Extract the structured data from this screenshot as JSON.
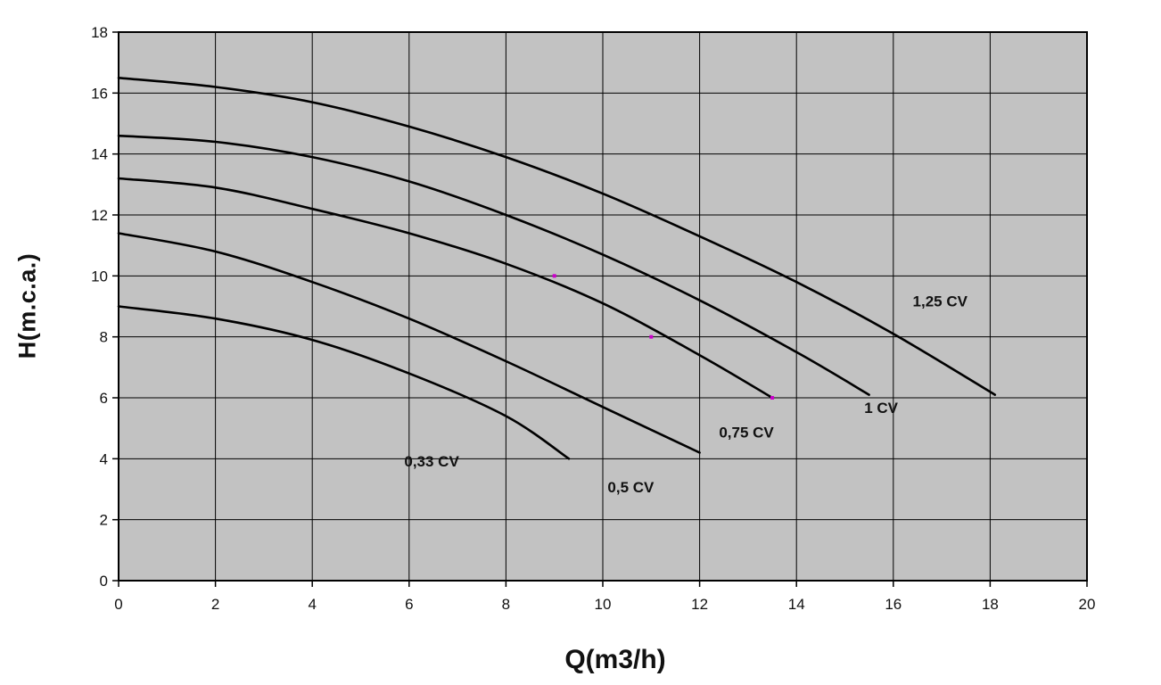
{
  "page": {
    "background": "#ffffff"
  },
  "chart_data": {
    "type": "line",
    "title": "",
    "xlabel": "Q(m3/h)",
    "ylabel": "H(m.c.a.)",
    "xlim": [
      0,
      20
    ],
    "ylim": [
      0,
      18
    ],
    "x_ticks": [
      0,
      2,
      4,
      6,
      8,
      10,
      12,
      14,
      16,
      18,
      20
    ],
    "y_ticks": [
      0,
      2,
      4,
      6,
      8,
      10,
      12,
      14,
      16,
      18
    ],
    "grid": true,
    "legend_position": "none",
    "plot_background": "#c2c2c2",
    "grid_color": "#000000",
    "border_color": "#000000",
    "curve_color": "#000000",
    "marker_color": "#cc00cc",
    "series": [
      {
        "name": "0,33 CV",
        "points": [
          [
            0,
            9.0
          ],
          [
            2,
            8.6
          ],
          [
            4,
            7.9
          ],
          [
            6,
            6.8
          ],
          [
            8,
            5.4
          ],
          [
            9.3,
            4.0
          ]
        ],
        "label_pos": [
          5.9,
          3.75
        ]
      },
      {
        "name": "0,5 CV",
        "points": [
          [
            0,
            11.4
          ],
          [
            2,
            10.8
          ],
          [
            4,
            9.8
          ],
          [
            6,
            8.6
          ],
          [
            8,
            7.2
          ],
          [
            10,
            5.7
          ],
          [
            12,
            4.2
          ]
        ],
        "label_pos": [
          10.1,
          2.9
        ]
      },
      {
        "name": "0,75 CV",
        "points": [
          [
            0,
            13.2
          ],
          [
            2,
            12.9
          ],
          [
            4,
            12.2
          ],
          [
            6,
            11.4
          ],
          [
            8,
            10.4
          ],
          [
            10,
            9.1
          ],
          [
            12,
            7.4
          ],
          [
            13.5,
            6.0
          ]
        ],
        "label_pos": [
          12.4,
          4.7
        ]
      },
      {
        "name": "1 CV",
        "points": [
          [
            0,
            14.6
          ],
          [
            2,
            14.4
          ],
          [
            4,
            13.9
          ],
          [
            6,
            13.1
          ],
          [
            8,
            12.0
          ],
          [
            10,
            10.7
          ],
          [
            12,
            9.2
          ],
          [
            14,
            7.5
          ],
          [
            15.5,
            6.1
          ]
        ],
        "label_pos": [
          15.4,
          5.5
        ]
      },
      {
        "name": "1,25 CV",
        "points": [
          [
            0,
            16.5
          ],
          [
            2,
            16.2
          ],
          [
            4,
            15.7
          ],
          [
            6,
            14.9
          ],
          [
            8,
            13.9
          ],
          [
            10,
            12.7
          ],
          [
            12,
            11.3
          ],
          [
            14,
            9.8
          ],
          [
            16,
            8.1
          ],
          [
            18.1,
            6.1
          ]
        ],
        "label_pos": [
          16.4,
          9.0
        ]
      }
    ],
    "markers": [
      [
        9,
        10
      ],
      [
        11,
        8
      ],
      [
        13.5,
        6
      ]
    ]
  }
}
